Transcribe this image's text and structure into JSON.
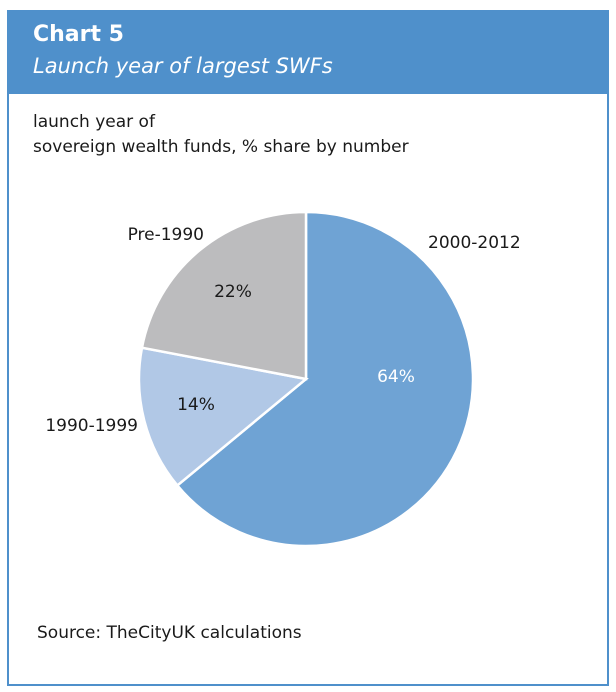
{
  "chart_data": {
    "type": "pie",
    "title": "Chart 5",
    "subtitle": "Launch year of largest SWFs",
    "description_lines": [
      "launch year of",
      "sovereign wealth funds, % share by number"
    ],
    "source": "Source: TheCityUK calculations",
    "slices": [
      {
        "label": "2000-2012",
        "value": 64,
        "value_label": "64%",
        "color": "#6fa3d4",
        "text_color": "#ffffff"
      },
      {
        "label": "1990-1999",
        "value": 14,
        "value_label": "14%",
        "color": "#b1c8e6",
        "text_color": "#1a1a1a"
      },
      {
        "label": "Pre-1990",
        "value": 22,
        "value_label": "22%",
        "color": "#bcbcbe",
        "text_color": "#1a1a1a"
      }
    ]
  }
}
